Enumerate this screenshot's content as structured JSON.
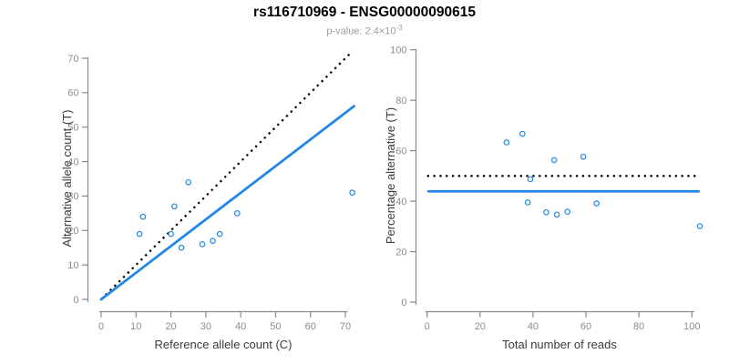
{
  "header": {
    "title": "rs116710969 - ENSG00000090615",
    "p_value_label": "p-value: 2.4×10",
    "p_value_exponent": "-3"
  },
  "colors": {
    "accent_blue": "#2287E6",
    "line_black": "#000000",
    "axis_gray": "#8a8a8a",
    "tick_label_gray": "#8c8c8c",
    "axis_title_color": "#3a3a3a",
    "subtitle_gray": "#9b9b9b",
    "title_color": "#000000",
    "background": "#ffffff"
  },
  "chart_data": [
    {
      "type": "scatter",
      "panel": "left",
      "title": "",
      "xlabel": "Reference allele count (C)",
      "ylabel": "Alternative allele count (T)",
      "xlim": [
        0,
        73.5
      ],
      "ylim": [
        0,
        73.5
      ],
      "xticks": [
        0,
        10,
        20,
        30,
        40,
        50,
        60,
        70
      ],
      "yticks": [
        0,
        10,
        20,
        30,
        40,
        50,
        60,
        70
      ],
      "grid": false,
      "legend": "none",
      "point_color": "#2287E6",
      "points": [
        [
          11,
          19
        ],
        [
          12,
          24
        ],
        [
          20,
          19
        ],
        [
          21,
          27
        ],
        [
          23,
          15
        ],
        [
          25,
          34
        ],
        [
          29,
          16
        ],
        [
          32,
          17
        ],
        [
          34,
          19
        ],
        [
          39,
          25
        ],
        [
          72,
          31
        ]
      ],
      "lines": [
        {
          "name": "identity-line",
          "style": "dotted",
          "color": "#000000",
          "x1": 0,
          "y1": 0,
          "x2": 72,
          "y2": 72
        },
        {
          "name": "fit-line",
          "style": "solid",
          "color": "#2287E6",
          "x1": 0,
          "y1": 0,
          "x2": 72.5,
          "y2": 56.1
        }
      ]
    },
    {
      "type": "scatter",
      "panel": "right",
      "title": "",
      "xlabel": "Total number of reads",
      "ylabel": "Percentage alternative (T)",
      "xlim": [
        0,
        104
      ],
      "ylim": [
        0,
        100
      ],
      "xticks": [
        0,
        20,
        40,
        60,
        80,
        100
      ],
      "yticks": [
        0,
        20,
        40,
        60,
        80,
        100
      ],
      "grid": false,
      "legend": "none",
      "point_color": "#2287E6",
      "points": [
        [
          30,
          63.3
        ],
        [
          36,
          66.7
        ],
        [
          38,
          39.5
        ],
        [
          39,
          48.7
        ],
        [
          45,
          35.6
        ],
        [
          48,
          56.3
        ],
        [
          49,
          34.7
        ],
        [
          53,
          35.8
        ],
        [
          59,
          57.6
        ],
        [
          64,
          39.1
        ],
        [
          103,
          30.1
        ]
      ],
      "lines": [
        {
          "name": "null-50pct-line",
          "style": "dotted",
          "color": "#000000",
          "x1": 0,
          "y1": 50,
          "x2": 102.5,
          "y2": 50
        },
        {
          "name": "mean-ratio-line",
          "style": "solid",
          "color": "#2287E6",
          "x1": 0.5,
          "y1": 43.9,
          "x2": 102.5,
          "y2": 43.9
        }
      ]
    }
  ]
}
